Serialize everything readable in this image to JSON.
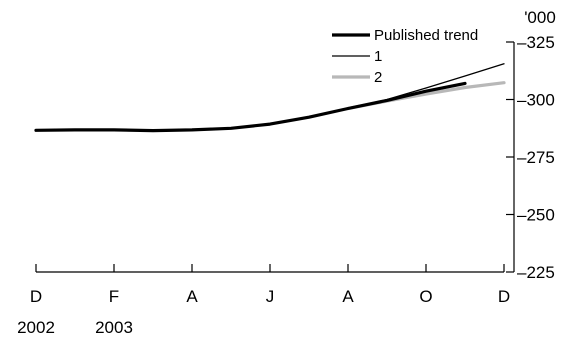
{
  "chart_data": {
    "type": "line",
    "title": "",
    "xlabel": "",
    "ylabel": "",
    "unit_label": "'000",
    "ylim": [
      225,
      325
    ],
    "y_ticks": [
      225,
      250,
      275,
      300,
      325
    ],
    "y_tick_labels": [
      "225",
      "250",
      "275",
      "300",
      "325"
    ],
    "x_range": [
      0,
      12
    ],
    "x_ticks": [
      {
        "x": 0,
        "label": "D",
        "year": "2002"
      },
      {
        "x": 2,
        "label": "F",
        "year": "2003"
      },
      {
        "x": 4,
        "label": "A",
        "year": ""
      },
      {
        "x": 6,
        "label": "J",
        "year": ""
      },
      {
        "x": 8,
        "label": "A",
        "year": ""
      },
      {
        "x": 10,
        "label": "O",
        "year": ""
      },
      {
        "x": 12,
        "label": "D",
        "year": ""
      }
    ],
    "legend_position": "top-right",
    "series": [
      {
        "name": "Published trend",
        "color": "#000000",
        "style": "thick",
        "x": [
          0,
          1,
          2,
          3,
          4,
          5,
          6,
          7,
          8,
          9,
          10,
          11
        ],
        "values": [
          286.6,
          286.8,
          286.8,
          286.5,
          286.8,
          287.5,
          289.3,
          292.3,
          296.1,
          299.6,
          303.6,
          307.0
        ]
      },
      {
        "name": "1",
        "color": "#000000",
        "style": "thin",
        "x": [
          8,
          9,
          10,
          11,
          12
        ],
        "values": [
          296.1,
          300.0,
          305.0,
          310.2,
          315.5
        ]
      },
      {
        "name": "2",
        "color": "#b8b8b8",
        "style": "thick",
        "x": [
          8,
          9,
          10,
          11,
          12
        ],
        "values": [
          296.1,
          299.3,
          302.4,
          305.2,
          307.3
        ]
      }
    ]
  }
}
